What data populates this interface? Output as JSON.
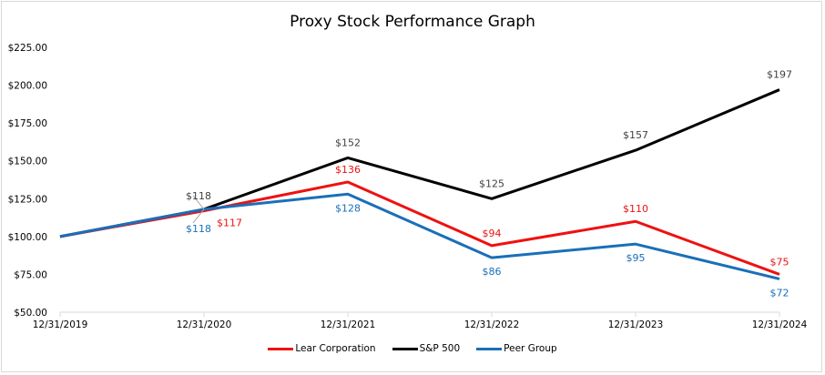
{
  "chart_data": {
    "type": "line",
    "title": "Proxy Stock Performance Graph",
    "categories": [
      "12/31/2019",
      "12/31/2020",
      "12/31/2021",
      "12/31/2022",
      "12/31/2023",
      "12/31/2024"
    ],
    "ylim": [
      50,
      225
    ],
    "yticks": [
      "$50.00",
      "$75.00",
      "$100.00",
      "$125.00",
      "$150.00",
      "$175.00",
      "$200.00",
      "$225.00"
    ],
    "grid": false,
    "legend_position": "bottom",
    "series": [
      {
        "name": "Lear Corporation",
        "color": "#ee1111",
        "values": [
          100,
          117,
          136,
          94,
          110,
          75
        ],
        "labels": [
          null,
          "$117",
          "$136",
          "$94",
          "$110",
          "$75"
        ]
      },
      {
        "name": "S&P 500",
        "color": "#000000",
        "values": [
          100,
          118,
          152,
          125,
          157,
          197
        ],
        "labels": [
          null,
          "$118",
          "$152",
          "$125",
          "$157",
          "$197"
        ]
      },
      {
        "name": "Peer Group",
        "color": "#1a6fb8",
        "values": [
          100,
          118,
          128,
          86,
          95,
          72
        ],
        "labels": [
          null,
          "$118",
          "$128",
          "$86",
          "$95",
          "$72"
        ]
      }
    ]
  }
}
